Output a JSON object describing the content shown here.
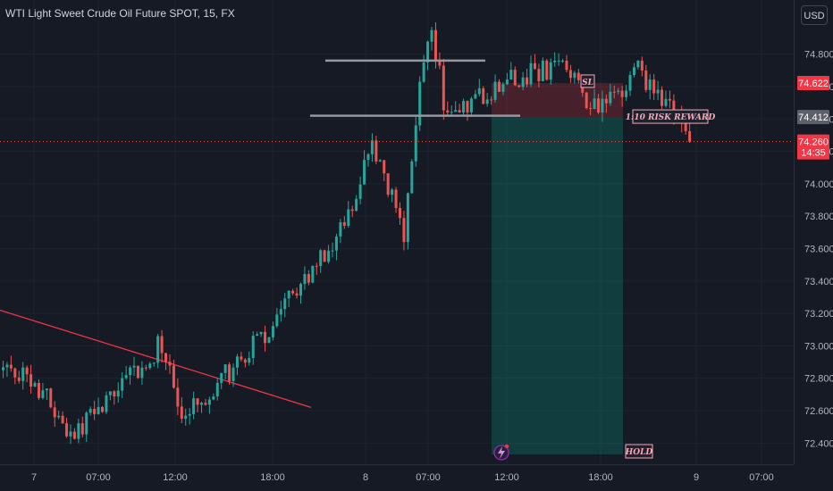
{
  "title": "WTI Light Sweet Crude Oil Future SPOT, 15, FX",
  "currency_button": "USD",
  "colors": {
    "background": "#161a25",
    "up": "#26a69a",
    "down": "#ef5350",
    "text": "#b2b5be",
    "grid": "#1f2330",
    "trendline": "#f23645",
    "stop_zone": "#f23645",
    "target_zone": "#089981"
  },
  "chart_data": {
    "type": "candlestick",
    "title": "WTI Light Sweet Crude Oil Future SPOT, 15, FX",
    "ylim": [
      72.33,
      75.09
    ],
    "y_ticks": [
      "74.800",
      "74.600",
      "74.400",
      "74.200",
      "74.000",
      "73.800",
      "73.600",
      "73.400",
      "73.200",
      "73.000",
      "72.800",
      "72.600",
      "72.400"
    ],
    "x_ticks": [
      "7",
      "07:00",
      "12:00",
      "18:00",
      "8",
      "07:00",
      "12:00",
      "18:00",
      "9",
      "07:00"
    ],
    "price_labels": {
      "stop": {
        "value": "74.622",
        "price": 74.622
      },
      "entry": {
        "value": "74.412",
        "price": 74.412
      },
      "last": {
        "value": "74.260",
        "price": 74.26,
        "countdown": "14:35"
      }
    },
    "annotations": {
      "stop_loss": "SL",
      "risk_reward": "1:10 RISK REWARD",
      "hold": "HOLD"
    },
    "position": {
      "entry": 74.412,
      "stop": 74.622,
      "target": 72.33
    },
    "levels": [
      {
        "name": "range-high",
        "price": 74.76
      },
      {
        "name": "range-low",
        "price": 74.42
      }
    ],
    "trendline": [
      {
        "price": 73.22
      },
      {
        "price": 72.62
      }
    ],
    "anchors": [
      {
        "label": "start",
        "price": 72.85
      },
      {
        "label": "dip",
        "price": 72.75
      },
      {
        "label": "low",
        "price": 72.45
      },
      {
        "label": "trend-touch",
        "price": 73.02
      },
      {
        "label": "pullback",
        "price": 72.6
      },
      {
        "label": "rally",
        "price": 72.85
      },
      {
        "label": "surge",
        "price": 73.2
      },
      {
        "label": "climb",
        "price": 73.7
      },
      {
        "label": "peak1",
        "price": 74.2
      },
      {
        "label": "dip2",
        "price": 73.7
      },
      {
        "label": "spike",
        "price": 74.6
      },
      {
        "label": "top",
        "price": 74.9
      },
      {
        "label": "drop",
        "price": 74.4
      },
      {
        "label": "range-mid",
        "price": 74.55
      },
      {
        "label": "range-top",
        "price": 74.75
      },
      {
        "label": "range-low",
        "price": 74.45
      },
      {
        "label": "late-high",
        "price": 74.7
      },
      {
        "label": "entry",
        "price": 74.45
      },
      {
        "label": "last",
        "price": 74.26
      }
    ]
  }
}
